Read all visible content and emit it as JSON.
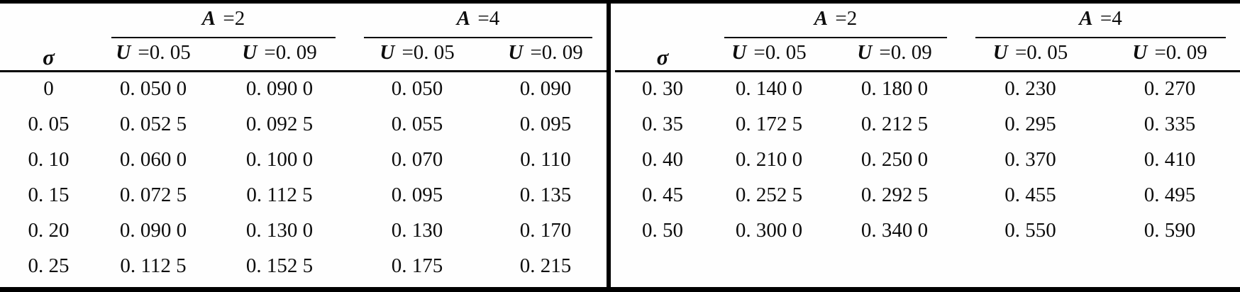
{
  "figure": {
    "background": "#fefefe",
    "rule_color": "#000000",
    "text_color": "#0d0d0d"
  },
  "left_table": {
    "sigma_header": "σ",
    "groups": [
      {
        "symbol": "A",
        "value": " =2"
      },
      {
        "symbol": "A",
        "value": " =4"
      }
    ],
    "sub_headers": [
      {
        "symbol": "U",
        "value": " =0. 05"
      },
      {
        "symbol": "U",
        "value": " =0. 09"
      },
      {
        "symbol": "U",
        "value": " =0. 05"
      },
      {
        "symbol": "U",
        "value": " =0. 09"
      }
    ],
    "rows": [
      [
        "0",
        "0. 050 0",
        "0. 090 0",
        "0. 050",
        "0. 090"
      ],
      [
        "0. 05",
        "0. 052 5",
        "0. 092 5",
        "0. 055",
        "0. 095"
      ],
      [
        "0. 10",
        "0. 060 0",
        "0. 100 0",
        "0. 070",
        "0. 110"
      ],
      [
        "0. 15",
        "0. 072 5",
        "0. 112 5",
        "0. 095",
        "0. 135"
      ],
      [
        "0. 20",
        "0. 090 0",
        "0. 130 0",
        "0. 130",
        "0. 170"
      ],
      [
        "0. 25",
        "0. 112 5",
        "0. 152 5",
        "0. 175",
        "0. 215"
      ]
    ]
  },
  "right_table": {
    "sigma_header": "σ",
    "groups": [
      {
        "symbol": "A",
        "value": " =2"
      },
      {
        "symbol": "A",
        "value": " =4"
      }
    ],
    "sub_headers": [
      {
        "symbol": "U",
        "value": " =0. 05"
      },
      {
        "symbol": "U",
        "value": " =0. 09"
      },
      {
        "symbol": "U",
        "value": " =0. 05"
      },
      {
        "symbol": "U",
        "value": " =0. 09"
      }
    ],
    "rows": [
      [
        "0. 30",
        "0. 140 0",
        "0. 180 0",
        "0. 230",
        "0. 270"
      ],
      [
        "0. 35",
        "0. 172 5",
        "0. 212 5",
        "0. 295",
        "0. 335"
      ],
      [
        "0. 40",
        "0. 210 0",
        "0. 250 0",
        "0. 370",
        "0. 410"
      ],
      [
        "0. 45",
        "0. 252 5",
        "0. 292 5",
        "0. 455",
        "0. 495"
      ],
      [
        "0. 50",
        "0. 300 0",
        "0. 340 0",
        "0. 550",
        "0. 590"
      ]
    ]
  }
}
